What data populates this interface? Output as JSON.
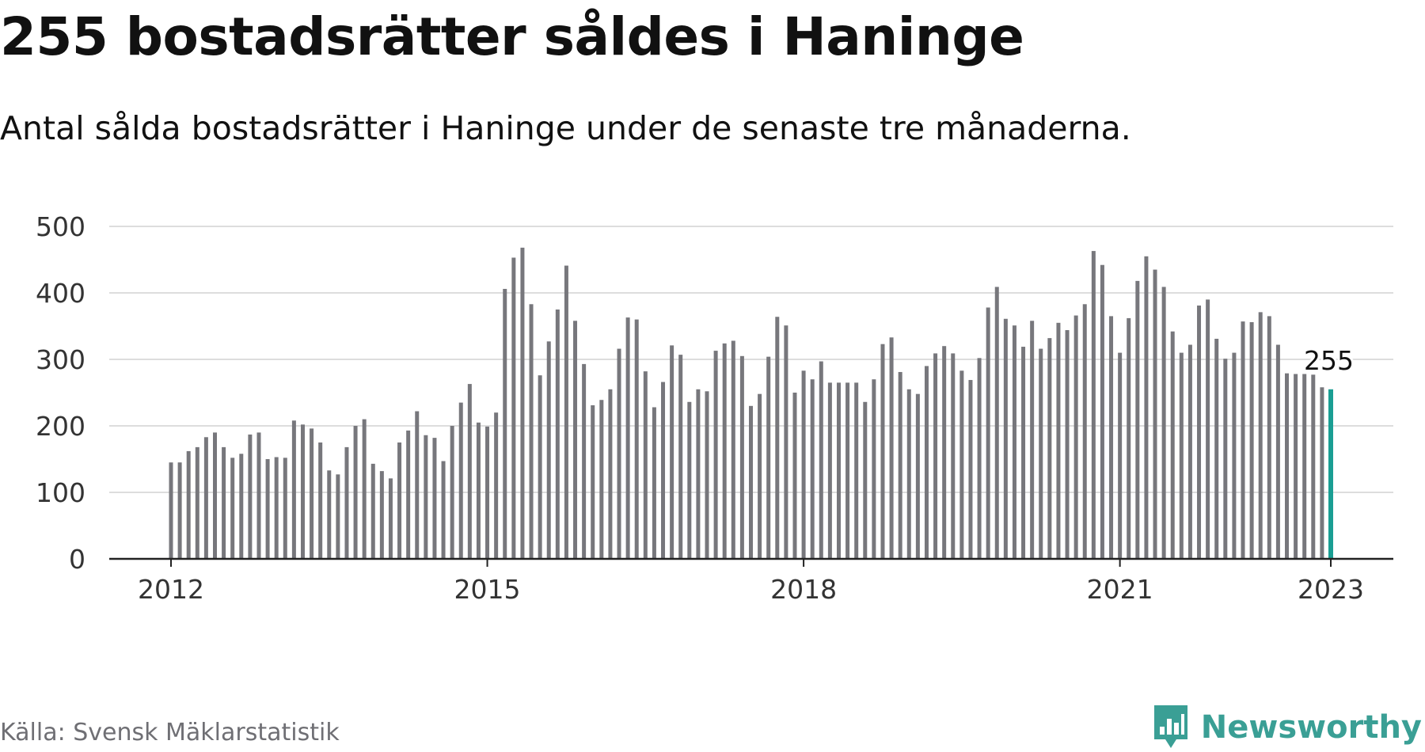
{
  "title": "255 bostadsrätter såldes i Haninge",
  "subtitle": "Antal sålda bostadsrätter i Haninge under de senaste tre månaderna.",
  "source": "Källa: Svensk Mäklarstatistik",
  "brand": {
    "name": "Newsworthy",
    "icon": "newsworthy-logo-icon",
    "color": "#3a9f95"
  },
  "colors": {
    "bar": "#77777c",
    "highlight": "#1a9e93",
    "grid": "#dddddd",
    "axis": "#222222"
  },
  "chart_data": {
    "type": "bar",
    "ylim": [
      0,
      500
    ],
    "yticks": [
      0,
      100,
      200,
      300,
      400,
      500
    ],
    "xticks": [
      "2012",
      "2015",
      "2018",
      "2021",
      "2023"
    ],
    "grid": true,
    "highlight_label": "255",
    "start": "2012-01",
    "values": [
      145,
      145,
      162,
      168,
      183,
      190,
      168,
      152,
      158,
      187,
      190,
      150,
      153,
      152,
      208,
      202,
      196,
      175,
      133,
      127,
      168,
      200,
      210,
      143,
      132,
      121,
      175,
      193,
      222,
      186,
      182,
      147,
      200,
      235,
      263,
      205,
      199,
      220,
      406,
      453,
      468,
      383,
      276,
      327,
      375,
      441,
      358,
      293,
      231,
      239,
      255,
      316,
      363,
      360,
      282,
      228,
      266,
      321,
      307,
      236,
      255,
      252,
      313,
      324,
      328,
      305,
      230,
      248,
      304,
      364,
      351,
      250,
      283,
      270,
      297,
      265,
      265,
      265,
      265,
      236,
      270,
      323,
      333,
      281,
      255,
      248,
      290,
      309,
      320,
      309,
      283,
      269,
      302,
      378,
      409,
      361,
      351,
      319,
      358,
      316,
      332,
      355,
      344,
      366,
      383,
      463,
      442,
      365,
      310,
      362,
      418,
      455,
      435,
      409,
      342,
      310,
      322,
      381,
      390,
      331,
      301,
      310,
      357,
      356,
      371,
      365,
      322,
      279,
      278,
      278,
      277,
      258,
      255
    ]
  }
}
